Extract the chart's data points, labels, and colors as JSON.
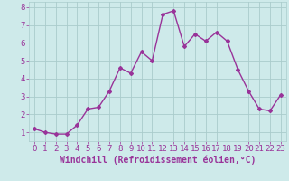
{
  "x": [
    0,
    1,
    2,
    3,
    4,
    5,
    6,
    7,
    8,
    9,
    10,
    11,
    12,
    13,
    14,
    15,
    16,
    17,
    18,
    19,
    20,
    21,
    22,
    23
  ],
  "y": [
    1.2,
    1.0,
    0.9,
    0.9,
    1.4,
    2.3,
    2.4,
    3.3,
    4.6,
    4.3,
    5.5,
    5.0,
    7.6,
    7.8,
    5.8,
    6.5,
    6.1,
    6.6,
    6.1,
    4.5,
    3.3,
    2.3,
    2.2,
    3.1
  ],
  "line_color": "#993399",
  "marker": "D",
  "marker_size": 2,
  "line_width": 1.0,
  "bg_color": "#ceeaea",
  "grid_color": "#aacccc",
  "xlabel": "Windchill (Refroidissement éolien,°C)",
  "xlabel_color": "#993399",
  "xlabel_fontsize": 7,
  "tick_color": "#993399",
  "tick_fontsize": 6.5,
  "ylim": [
    0.5,
    8.3
  ],
  "xlim": [
    -0.5,
    23.5
  ],
  "yticks": [
    1,
    2,
    3,
    4,
    5,
    6,
    7,
    8
  ],
  "xticks": [
    0,
    1,
    2,
    3,
    4,
    5,
    6,
    7,
    8,
    9,
    10,
    11,
    12,
    13,
    14,
    15,
    16,
    17,
    18,
    19,
    20,
    21,
    22,
    23
  ]
}
